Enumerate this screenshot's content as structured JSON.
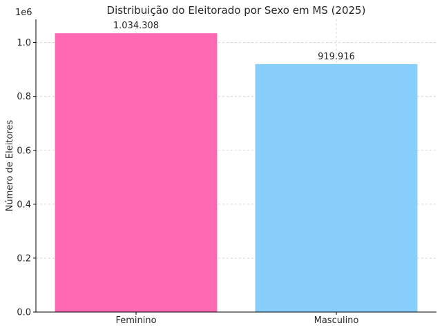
{
  "chart_data": {
    "type": "bar",
    "title": "Distribuição do Eleitorado por Sexo em MS (2025)",
    "xlabel": "",
    "ylabel": "Número de Eleitores",
    "categories": [
      "Feminino",
      "Masculino"
    ],
    "values": [
      1034308,
      919916
    ],
    "data_labels": [
      "1.034.308",
      "919.916"
    ],
    "colors": [
      "#ff69b4",
      "#87cefa"
    ],
    "ylim": [
      0,
      1086023
    ],
    "y_ticks": [
      0,
      200000,
      400000,
      600000,
      800000,
      1000000
    ],
    "y_tick_labels": [
      "0.0",
      "0.2",
      "0.4",
      "0.6",
      "0.8",
      "1.0"
    ],
    "y_offset_label": "1e6",
    "grid": true
  }
}
